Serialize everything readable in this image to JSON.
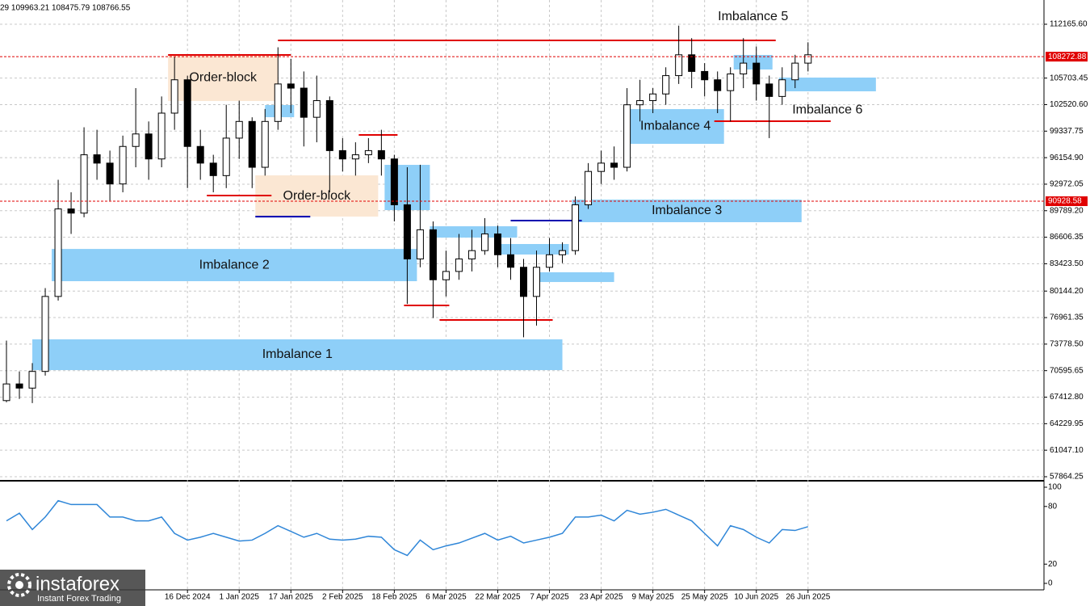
{
  "branding": {
    "name": "instaforex",
    "tagline": "Instant Forex Trading"
  },
  "chart_data": [
    {
      "type": "candlestick",
      "header": "29 109963.21 108475.79 108766.55",
      "x": [
        "2024-10-21",
        "2024-10-25",
        "2024-10-29",
        "2024-11-02",
        "2024-11-06",
        "2024-11-10",
        "2024-11-14",
        "2024-11-18",
        "2024-11-22",
        "2024-11-26",
        "2024-11-30",
        "2024-12-04",
        "2024-12-08",
        "2024-12-12",
        "2024-12-16",
        "2024-12-20",
        "2024-12-24",
        "2024-12-28",
        "2025-01-01",
        "2025-01-05",
        "2025-01-09",
        "2025-01-13",
        "2025-01-17",
        "2025-01-21",
        "2025-01-25",
        "2025-01-29",
        "2025-02-02",
        "2025-02-06",
        "2025-02-10",
        "2025-02-14",
        "2025-02-18",
        "2025-02-22",
        "2025-02-26",
        "2025-03-02",
        "2025-03-06",
        "2025-03-10",
        "2025-03-14",
        "2025-03-18",
        "2025-03-22",
        "2025-03-26",
        "2025-03-30",
        "2025-04-03",
        "2025-04-07",
        "2025-04-11",
        "2025-04-15",
        "2025-04-19",
        "2025-04-23",
        "2025-04-27",
        "2025-05-01",
        "2025-05-05",
        "2025-05-09",
        "2025-05-13",
        "2025-05-17",
        "2025-05-21",
        "2025-05-25",
        "2025-05-29",
        "2025-06-02",
        "2025-06-06",
        "2025-06-10",
        "2025-06-14",
        "2025-06-18",
        "2025-06-22",
        "2025-06-26"
      ],
      "open": [
        67000,
        69000,
        68500,
        70500,
        79500,
        90000,
        89500,
        96500,
        95500,
        93000,
        97500,
        99000,
        96000,
        101500,
        105500,
        97500,
        95500,
        94000,
        98500,
        100500,
        95000,
        100500,
        105000,
        104500,
        101000,
        103000,
        97000,
        96000,
        96500,
        97000,
        96000,
        90500,
        84000,
        87500,
        81500,
        82500,
        84000,
        85000,
        87000,
        84500,
        83000,
        79500,
        83000,
        84500,
        85000,
        90500,
        94500,
        95500,
        95000,
        102500,
        103000,
        103800,
        106000,
        108500,
        106500,
        105500,
        104200,
        106200,
        107500,
        105000,
        103500,
        105500,
        107500
      ],
      "high": [
        74200,
        70500,
        71500,
        80500,
        93500,
        92000,
        99800,
        99500,
        97000,
        98800,
        104500,
        100500,
        103500,
        108300,
        106000,
        99500,
        96500,
        102500,
        103000,
        101000,
        102000,
        109400,
        108000,
        106500,
        106000,
        103500,
        98500,
        98000,
        98500,
        99500,
        96500,
        95000,
        95300,
        88500,
        85000,
        87000,
        87500,
        88900,
        88000,
        86500,
        84000,
        85000,
        86500,
        86000,
        91500,
        95500,
        97000,
        97500,
        104500,
        105500,
        104500,
        107000,
        112000,
        110500,
        107500,
        106500,
        107000,
        110500,
        109500,
        106000,
        107000,
        108500,
        110000
      ],
      "low": [
        66800,
        67200,
        66700,
        70000,
        79000,
        87000,
        89000,
        93500,
        91000,
        92000,
        95000,
        93500,
        95000,
        99500,
        92500,
        93500,
        92000,
        92500,
        96000,
        92500,
        94000,
        99500,
        101500,
        97500,
        98000,
        92000,
        94500,
        94000,
        95500,
        94000,
        88500,
        78600,
        83000,
        76900,
        79500,
        81500,
        82500,
        84500,
        83000,
        81500,
        74600,
        76000,
        82500,
        83500,
        84500,
        90000,
        93000,
        93500,
        94500,
        100500,
        101500,
        102500,
        105000,
        104500,
        103500,
        101500,
        100500,
        104500,
        103000,
        98500,
        102500,
        104500,
        106500
      ],
      "close": [
        69000,
        68500,
        70500,
        79500,
        90000,
        89500,
        96500,
        95500,
        93000,
        97500,
        99000,
        96000,
        101500,
        105500,
        97500,
        95500,
        94000,
        98500,
        100500,
        95000,
        100500,
        105000,
        104500,
        101000,
        103000,
        97000,
        96000,
        96500,
        97000,
        96000,
        90500,
        84000,
        87500,
        81500,
        82500,
        84000,
        85000,
        87000,
        84500,
        83000,
        79500,
        83000,
        84500,
        85000,
        90500,
        94500,
        95500,
        95000,
        102500,
        103000,
        103800,
        106000,
        108500,
        106500,
        105500,
        104200,
        106200,
        107500,
        105000,
        103500,
        105500,
        107500,
        108500
      ],
      "up_color": "#ffffff",
      "down_color": "#000000",
      "color": "#000000",
      "xlim": [
        "2024-10-19",
        "2025-09-07"
      ],
      "xticks": [
        {
          "value": "2024-12-16",
          "label": "16 Dec 2024"
        },
        {
          "value": "2025-01-01",
          "label": "1 Jan 2025"
        },
        {
          "value": "2025-01-17",
          "label": "17 Jan 2025"
        },
        {
          "value": "2025-02-02",
          "label": "2 Feb 2025"
        },
        {
          "value": "2025-02-18",
          "label": "18 Feb 2025"
        },
        {
          "value": "2025-03-06",
          "label": "6 Mar 2025"
        },
        {
          "value": "2025-03-22",
          "label": "22 Mar 2025"
        },
        {
          "value": "2025-04-07",
          "label": "7 Apr 2025"
        },
        {
          "value": "2025-04-23",
          "label": "23 Apr 2025"
        },
        {
          "value": "2025-05-09",
          "label": "9 May 2025"
        },
        {
          "value": "2025-05-25",
          "label": "25 May 2025"
        },
        {
          "value": "2025-06-10",
          "label": "10 Jun 2025"
        },
        {
          "value": "2025-06-26",
          "label": "26 Jun 2025"
        }
      ],
      "ylim": [
        57670,
        115075
      ],
      "yticks": [
        {
          "value": 112165.6,
          "label": "112165.60"
        },
        105703.45,
        {
          "value": 102520.6,
          "label": "102520.60"
        },
        99337.75,
        {
          "value": 96154.9,
          "label": "96154.90"
        },
        92972.05,
        {
          "value": 89789.2,
          "label": "89789.20"
        },
        86606.35,
        {
          "value": 83423.5,
          "label": "83423.50"
        },
        {
          "value": 80144.2,
          "label": "80144.20"
        },
        76961.35,
        {
          "value": 73778.5,
          "label": "73778.50"
        },
        70595.65,
        {
          "value": 67412.8,
          "label": "67412.80"
        },
        64229.95,
        {
          "value": 61047.1,
          "label": "61047.10"
        },
        57864.25
      ],
      "grid": true,
      "zones": [
        {
          "label": "Order-block",
          "from": "2024-12-10",
          "to": "2025-01-13",
          "low": 102950,
          "high": 108480,
          "color": "#fbe7d3"
        },
        {
          "label": "Order-block",
          "from": "2025-01-06",
          "to": "2025-02-13",
          "low": 89080,
          "high": 94030,
          "color": "#fbe7d3"
        },
        {
          "label": "Imbalance 1",
          "from": "2024-10-29",
          "to": "2025-04-11",
          "low": 70660,
          "high": 74350,
          "color": "#8ecff8"
        },
        {
          "label": "Imbalance 2",
          "from": "2024-11-04",
          "to": "2025-02-25",
          "low": 81330,
          "high": 85200,
          "color": "#8ecff8"
        },
        {
          "label": "Imbalance 3",
          "from": "2025-04-14",
          "to": "2025-06-24",
          "low": 88410,
          "high": 91120,
          "color": "#8ecff8"
        },
        {
          "label": "Imbalance 4",
          "from": "2025-05-01",
          "to": "2025-05-31",
          "low": 97815,
          "high": 101980,
          "color": "#8ecff8"
        },
        {
          "label": "Imbalance 5",
          "from": "2025-06-03",
          "to": "2025-06-15",
          "low": 106735,
          "high": 108480,
          "color": "#8ecff8"
        },
        {
          "label": "Imbalance 6",
          "from": "2025-06-17",
          "to": "2025-07-17",
          "low": 104116,
          "high": 105765,
          "color": "#8ecff8"
        },
        {
          "from": "2025-01-09",
          "to": "2025-01-18",
          "low": 101010,
          "high": 102470,
          "color": "#8ecff8"
        },
        {
          "from": "2025-02-15",
          "to": "2025-03-01",
          "low": 89860,
          "high": 95290,
          "color": "#8ecff8"
        },
        {
          "from": "2025-03-01",
          "to": "2025-03-28",
          "low": 86560,
          "high": 87920,
          "color": "#8ecff8"
        },
        {
          "from": "2025-03-22",
          "to": "2025-04-13",
          "low": 84530,
          "high": 85790,
          "color": "#8ecff8"
        },
        {
          "from": "2025-04-04",
          "to": "2025-04-27",
          "low": 81230,
          "high": 82400,
          "color": "#8ecff8"
        }
      ],
      "levels": [
        {
          "value": 108480,
          "from": "2024-12-10",
          "to": "2025-01-17",
          "color": "#e00000"
        },
        {
          "value": 110230,
          "from": "2025-01-13",
          "to": "2025-06-16",
          "color": "#e00000"
        },
        {
          "value": 91610,
          "from": "2024-12-22",
          "to": "2025-01-11",
          "color": "#e00000"
        },
        {
          "value": 89080,
          "from": "2025-01-06",
          "to": "2025-01-23",
          "color": "#0000b0"
        },
        {
          "value": 98880,
          "from": "2025-02-07",
          "to": "2025-02-19",
          "color": "#e00000"
        },
        {
          "value": 78420,
          "from": "2025-02-21",
          "to": "2025-03-07",
          "color": "#e00000"
        },
        {
          "value": 76670,
          "from": "2025-03-04",
          "to": "2025-04-08",
          "color": "#e00000"
        },
        {
          "value": 88600,
          "from": "2025-03-26",
          "to": "2025-04-17",
          "color": "#0000b0"
        },
        {
          "value": 100530,
          "from": "2025-05-28",
          "to": "2025-07-03",
          "color": "#e00000"
        }
      ],
      "price_lines": [
        108272.88,
        90928.58
      ],
      "price_line_color": "#e00000"
    },
    {
      "type": "line",
      "values": [
        65,
        73,
        56,
        69,
        86,
        82,
        82,
        82,
        69,
        69,
        65,
        65,
        69,
        52,
        45,
        48,
        52,
        48,
        44,
        45,
        52,
        60,
        54,
        48,
        52,
        46,
        45,
        46,
        49,
        48,
        35,
        29,
        45,
        35,
        39,
        42,
        47,
        52,
        45,
        49,
        42,
        45,
        48,
        52,
        69,
        69,
        71,
        65,
        76,
        72,
        74,
        77,
        71,
        65,
        52,
        39,
        60,
        56,
        48,
        42,
        56,
        55,
        59
      ],
      "color": "#2f86d8",
      "ylim": [
        0,
        100
      ],
      "yticks": [
        100,
        80,
        20,
        0
      ]
    }
  ]
}
